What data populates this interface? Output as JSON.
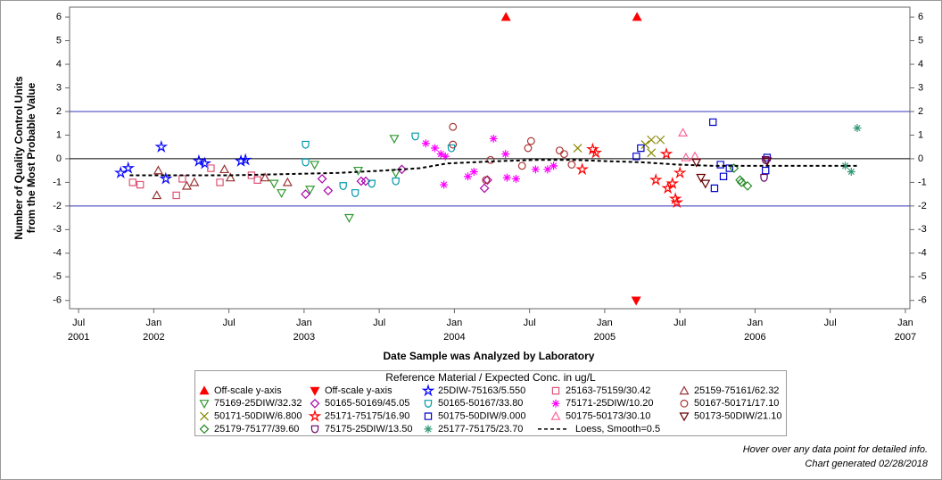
{
  "chart_data": {
    "type": "scatter",
    "x_label": "Date Sample was Analyzed by Laboratory",
    "y_label": [
      "Number of Quality Control Units",
      "from the Most Probable Value"
    ],
    "legend_title": "Reference Material / Expected Conc. in ug/L",
    "notes": [
      "Hover over any data point for detailed info.",
      "Chart generated 02/28/2018"
    ],
    "xlim": [
      2001.44,
      2007.03
    ],
    "ylim": [
      -6.35,
      6.42
    ],
    "xticks": [
      {
        "value": 2001.5,
        "label": "Jul"
      },
      {
        "value": 2002,
        "label": "Jan"
      },
      {
        "value": 2002.5,
        "label": "Jul"
      },
      {
        "value": 2003,
        "label": "Jan"
      },
      {
        "value": 2003.5,
        "label": "Jul"
      },
      {
        "value": 2004,
        "label": "Jan"
      },
      {
        "value": 2004.5,
        "label": "Jul"
      },
      {
        "value": 2005,
        "label": "Jan"
      },
      {
        "value": 2005.5,
        "label": "Jul"
      },
      {
        "value": 2006,
        "label": "Jan"
      },
      {
        "value": 2006.5,
        "label": "Jul"
      },
      {
        "value": 2007,
        "label": "Jan"
      }
    ],
    "xtick_years": [
      {
        "value": 2001.5,
        "label": "2001"
      },
      {
        "value": 2002,
        "label": "2002"
      },
      {
        "value": 2003,
        "label": "2003"
      },
      {
        "value": 2004,
        "label": "2004"
      },
      {
        "value": 2005,
        "label": "2005"
      },
      {
        "value": 2006,
        "label": "2006"
      },
      {
        "value": 2007,
        "label": "2007"
      }
    ],
    "yticks": [
      -6,
      -5,
      -4,
      -3,
      -2,
      -1,
      0,
      1,
      2,
      3,
      4,
      5,
      6
    ],
    "reference_lines": [
      {
        "value": 2,
        "color": "#3333bb"
      },
      {
        "value": 0,
        "color": "#000000"
      },
      {
        "value": -2,
        "color": "#3333bb"
      }
    ],
    "series": [
      {
        "name": "Off-scale y-axis",
        "marker": "filled-triangle-up",
        "color": "#ff0000",
        "x": [
          2004.343,
          2005.215
        ],
        "values": [
          6,
          6
        ]
      },
      {
        "name": "Off-scale y-axis",
        "marker": "filled-triangle-down",
        "color": "#ff0000",
        "x": [
          2005.209
        ],
        "values": [
          -6
        ]
      },
      {
        "name": "25DIW-75163/5.550",
        "marker": "star",
        "color": "#0000ff",
        "x": [
          2001.78,
          2001.83,
          2002.05,
          2002.08,
          2002.3,
          2002.34,
          2002.58,
          2002.61
        ],
        "values": [
          -0.6,
          -0.4,
          0.5,
          -0.85,
          -0.1,
          -0.2,
          -0.1,
          -0.05
        ]
      },
      {
        "name": "25163-75159/30.42",
        "marker": "square",
        "color": "#dd5577",
        "x": [
          2001.86,
          2001.91,
          2002.15,
          2002.19,
          2002.38,
          2002.44,
          2002.65,
          2002.69
        ],
        "values": [
          -1.0,
          -1.1,
          -1.55,
          -0.85,
          -0.4,
          -1.0,
          -0.7,
          -0.9
        ]
      },
      {
        "name": "25159-75161/62.32",
        "marker": "triangle-up",
        "color": "#993333",
        "x": [
          2002.02,
          2002.03,
          2002.22,
          2002.27,
          2002.47,
          2002.51,
          2002.74,
          2002.89
        ],
        "values": [
          -1.55,
          -0.5,
          -1.15,
          -1.0,
          -0.45,
          -0.8,
          -0.8,
          -1.0
        ]
      },
      {
        "name": "75169-25DIW/32.32",
        "marker": "triangle-down",
        "color": "#339933",
        "x": [
          2002.8,
          2002.85,
          2003.04,
          2003.07,
          2003.3,
          2003.36,
          2003.6,
          2003.61
        ],
        "values": [
          -1.05,
          -1.45,
          -1.3,
          -0.25,
          -2.5,
          -0.5,
          0.85,
          -0.6
        ]
      },
      {
        "name": "50165-50169/45.05",
        "marker": "diamond",
        "color": "#aa00aa",
        "x": [
          2003.01,
          2003.12,
          2003.16,
          2003.38,
          2003.41,
          2003.65,
          2004.2,
          2004.22
        ],
        "values": [
          -1.5,
          -0.85,
          -1.35,
          -0.95,
          -0.95,
          -0.45,
          -1.25,
          -0.9
        ]
      },
      {
        "name": "50165-50167/33.80",
        "marker": "shield",
        "color": "#0099aa",
        "x": [
          2003.01,
          2003.01,
          2003.26,
          2003.34,
          2003.45,
          2003.61,
          2003.74,
          2003.98
        ],
        "values": [
          0.6,
          -0.15,
          -1.15,
          -1.45,
          -1.05,
          -0.95,
          0.95,
          0.45
        ]
      },
      {
        "name": "75171-25DIW/10.20",
        "marker": "asterisk",
        "color": "#ff00ff",
        "x": [
          2003.81,
          2003.87,
          2003.91,
          2003.93,
          2003.94,
          2004.09,
          2004.13,
          2004.26,
          2004.34,
          2004.35,
          2004.41,
          2004.54,
          2004.62,
          2004.66
        ],
        "values": [
          0.65,
          0.45,
          0.2,
          -1.1,
          0.1,
          -0.75,
          -0.55,
          0.85,
          0.2,
          -0.8,
          -0.85,
          -0.45,
          -0.45,
          -0.3
        ]
      },
      {
        "name": "50167-50171/17.10",
        "marker": "circle",
        "color": "#aa3333",
        "x": [
          2003.99,
          2003.99,
          2004.21,
          2004.24,
          2004.45,
          2004.49,
          2004.51,
          2004.7,
          2004.73,
          2004.78
        ],
        "values": [
          1.35,
          0.6,
          -0.9,
          -0.05,
          -0.3,
          0.45,
          0.75,
          0.35,
          0.2,
          -0.25
        ]
      },
      {
        "name": "50171-50DIW/6.800",
        "marker": "x",
        "color": "#888800",
        "x": [
          2004.82,
          2005.27,
          2005.31,
          2005.37,
          2005.31
        ],
        "values": [
          0.45,
          0.6,
          0.8,
          0.8,
          0.25
        ]
      },
      {
        "name": "25171-75175/16.90",
        "marker": "star",
        "color": "#ff0000",
        "x": [
          2004.85,
          2004.92,
          2004.94,
          2005.34,
          2005.41,
          2005.42,
          2005.45,
          2005.47,
          2005.48,
          2005.5
        ],
        "values": [
          -0.45,
          0.4,
          0.25,
          -0.9,
          0.2,
          -1.25,
          -1.05,
          -1.7,
          -1.85,
          -0.6
        ]
      },
      {
        "name": "50175-50DIW/9.000",
        "marker": "square",
        "color": "#0000cc",
        "x": [
          2005.21,
          2005.24,
          2005.72,
          2005.73,
          2005.77,
          2005.79,
          2005.83,
          2006.07,
          2006.08
        ],
        "values": [
          0.1,
          0.45,
          1.55,
          -1.25,
          -0.25,
          -0.75,
          -0.4,
          -0.5,
          0.05
        ]
      },
      {
        "name": "50175-50173/30.10",
        "marker": "triangle-up",
        "color": "#ff6699",
        "x": [
          2005.52,
          2005.54,
          2005.6
        ],
        "values": [
          1.1,
          0.05,
          0.1
        ]
      },
      {
        "name": "50173-50DIW/21.10",
        "marker": "triangle-down",
        "color": "#660000",
        "x": [
          2005.61,
          2005.64,
          2005.67,
          2006.08
        ],
        "values": [
          -0.15,
          -0.8,
          -1.05,
          -0.1
        ]
      },
      {
        "name": "25179-75177/39.60",
        "marker": "diamond",
        "color": "#228822",
        "x": [
          2005.86,
          2005.9,
          2005.91,
          2005.95
        ],
        "values": [
          -0.4,
          -0.9,
          -1.0,
          -1.15
        ]
      },
      {
        "name": "75175-25DIW/13.50",
        "marker": "shield",
        "color": "#660066",
        "x": [
          2006.06,
          2006.07
        ],
        "values": [
          -0.8,
          -0.05
        ]
      },
      {
        "name": "25177-75175/23.70",
        "marker": "asterisk",
        "color": "#339977",
        "x": [
          2006.6,
          2006.64,
          2006.68
        ],
        "values": [
          -0.3,
          -0.55,
          1.3
        ]
      },
      {
        "name": "Loess, Smooth=0.5",
        "marker": "none",
        "line": "dashed",
        "color": "#000000",
        "x": [
          2001.84,
          2002.16,
          2002.52,
          2002.88,
          2003.23,
          2003.53,
          2003.77,
          2003.95,
          2004.12,
          2004.3,
          2004.54,
          2004.78,
          2005.01,
          2005.25,
          2005.49,
          2005.73,
          2006.02,
          2006.32,
          2006.68
        ],
        "values": [
          -0.7,
          -0.7,
          -0.7,
          -0.65,
          -0.6,
          -0.5,
          -0.4,
          -0.2,
          -0.15,
          -0.1,
          -0.05,
          -0.05,
          -0.1,
          -0.15,
          -0.25,
          -0.3,
          -0.3,
          -0.3,
          -0.3
        ]
      }
    ]
  }
}
